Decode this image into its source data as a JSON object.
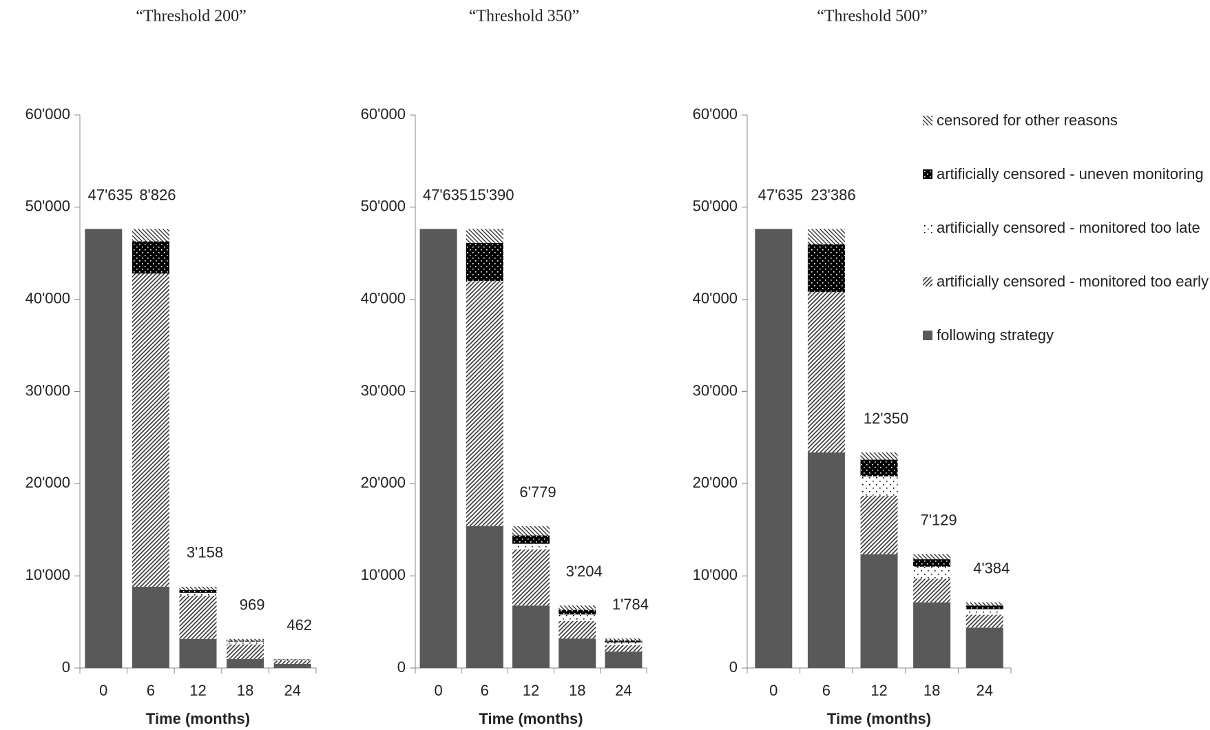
{
  "chart_data": [
    {
      "type": "bar",
      "stacked": true,
      "title": "“Threshold 200”",
      "x_label": "Time (months)",
      "categories": [
        "0",
        "6",
        "12",
        "18",
        "24"
      ],
      "series": [
        {
          "color": "#595959",
          "values": [
            47635,
            8826,
            3158,
            969,
            462
          ],
          "value_labels": [
            "47'635",
            "8'826",
            "3'158",
            "969",
            "462"
          ]
        },
        {
          "color": "#333333",
          "values": [
            0,
            33974,
            4700,
            1600,
            350
          ]
        },
        {
          "color": "#000000",
          "values": [
            0,
            0,
            300,
            300,
            80
          ]
        },
        {
          "color": "#000000",
          "values": [
            0,
            3500,
            300,
            100,
            30
          ]
        },
        {
          "color": "#333333",
          "values": [
            0,
            1335,
            368,
            189,
            47
          ]
        }
      ],
      "ylim": [
        0,
        60000
      ],
      "yticks": [
        0,
        {
          "value": 10000,
          "label": "10'000"
        },
        {
          "value": 20000,
          "label": "20'000"
        },
        {
          "value": 30000,
          "label": "30'000"
        },
        {
          "value": 40000,
          "label": "40'000"
        },
        {
          "value": 50000,
          "label": "50'000"
        },
        {
          "value": 60000,
          "label": "60'000"
        }
      ]
    },
    {
      "type": "bar",
      "stacked": true,
      "title": "“Threshold 350”",
      "x_label": "Time (months)",
      "categories": [
        "0",
        "6",
        "12",
        "18",
        "24"
      ],
      "series": [
        {
          "color": "#595959",
          "values": [
            47635,
            15390,
            6779,
            3204,
            1784
          ],
          "value_labels": [
            "47'635",
            "15'390",
            "6'779",
            "3'204",
            "1'784"
          ]
        },
        {
          "color": "#333333",
          "values": [
            0,
            26610,
            6100,
            1900,
            700
          ]
        },
        {
          "color": "#000000",
          "values": [
            0,
            0,
            600,
            700,
            300
          ]
        },
        {
          "color": "#000000",
          "values": [
            0,
            4100,
            900,
            500,
            200
          ]
        },
        {
          "color": "#333333",
          "values": [
            0,
            1535,
            1011,
            475,
            220
          ]
        }
      ],
      "ylim": [
        0,
        60000
      ],
      "yticks": [
        0,
        {
          "value": 10000,
          "label": "10'000"
        },
        {
          "value": 20000,
          "label": "20'000"
        },
        {
          "value": 30000,
          "label": "30'000"
        },
        {
          "value": 40000,
          "label": "40'000"
        },
        {
          "value": 50000,
          "label": "50'000"
        },
        {
          "value": 60000,
          "label": "60'000"
        }
      ]
    },
    {
      "type": "bar",
      "stacked": true,
      "title": "“Threshold 500”",
      "x_label": "Time (months)",
      "categories": [
        "0",
        "6",
        "12",
        "18",
        "24"
      ],
      "legend": "right",
      "series": [
        {
          "name": "following strategy",
          "color": "#595959",
          "values": [
            47635,
            23386,
            12350,
            7129,
            4384
          ],
          "value_labels": [
            "47'635",
            "23'386",
            "12'350",
            "7'129",
            "4'384"
          ]
        },
        {
          "name": "artificially censored - monitored too early",
          "color": "#333333",
          "values": [
            0,
            17400,
            6350,
            2570,
            1400
          ]
        },
        {
          "name": "artificially censored - monitored too late",
          "color": "#000000",
          "values": [
            0,
            0,
            2100,
            1300,
            600
          ]
        },
        {
          "name": "artificially censored - uneven monitoring",
          "color": "#000000",
          "values": [
            0,
            5200,
            1800,
            800,
            400
          ]
        },
        {
          "name": "censored for other reasons",
          "color": "#333333",
          "values": [
            0,
            1649,
            786,
            551,
            345
          ]
        }
      ],
      "ylim": [
        0,
        60000
      ],
      "yticks": [
        0,
        {
          "value": 10000,
          "label": "10'000"
        },
        {
          "value": 20000,
          "label": "20'000"
        },
        {
          "value": 30000,
          "label": "30'000"
        },
        {
          "value": 40000,
          "label": "40'000"
        },
        {
          "value": 50000,
          "label": "50'000"
        },
        {
          "value": 60000,
          "label": "60'000"
        }
      ]
    }
  ]
}
